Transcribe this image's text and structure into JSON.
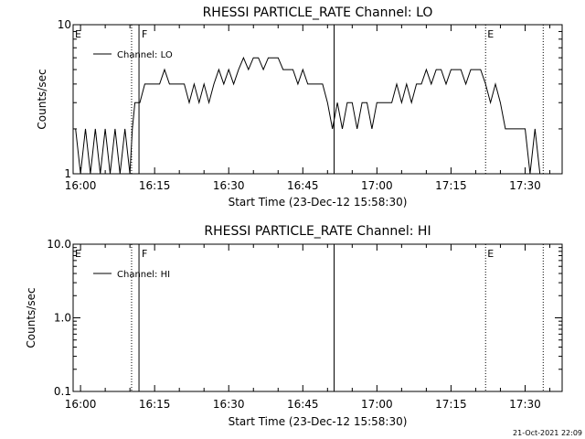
{
  "chart_data": [
    {
      "type": "line",
      "title": "RHESSI PARTICLE_RATE Channel: LO",
      "xlabel": "Start Time (23-Dec-12 15:58:30)",
      "ylabel": "Counts/sec",
      "yscale": "log",
      "xlim": [
        "15:58:30",
        "17:37:30"
      ],
      "ylim": [
        1,
        10
      ],
      "x_ticks": [
        "16:00",
        "16:15",
        "16:30",
        "16:45",
        "17:00",
        "17:15",
        "17:30"
      ],
      "y_ticks": [
        "1",
        "10"
      ],
      "legend": {
        "placement": "top-left",
        "entries": [
          "Channel: LO"
        ]
      },
      "region_labels": [
        {
          "text": "E",
          "at": "15:58:30"
        },
        {
          "text": "F",
          "at": "16:12:00"
        },
        {
          "text": "E",
          "at": "17:22:00"
        }
      ],
      "markers": [
        {
          "time": "16:10:20",
          "style": "dotted"
        },
        {
          "time": "16:11:50",
          "style": "solid"
        },
        {
          "time": "16:51:20",
          "style": "solid"
        },
        {
          "time": "17:22:00",
          "style": "dotted"
        },
        {
          "time": "17:33:40",
          "style": "dotted"
        }
      ],
      "series": [
        {
          "name": "Channel: LO",
          "x": [
            "15:59:00",
            "16:00:00",
            "16:01:00",
            "16:02:00",
            "16:03:00",
            "16:04:00",
            "16:05:00",
            "16:06:00",
            "16:07:00",
            "16:08:00",
            "16:09:00",
            "16:10:00",
            "16:10:30",
            "16:11:00",
            "16:12:00",
            "16:13:00",
            "16:14:00",
            "16:15:00",
            "16:16:00",
            "16:17:00",
            "16:18:00",
            "16:19:00",
            "16:20:00",
            "16:21:00",
            "16:22:00",
            "16:23:00",
            "16:24:00",
            "16:25:00",
            "16:26:00",
            "16:27:00",
            "16:28:00",
            "16:29:00",
            "16:30:00",
            "16:31:00",
            "16:32:00",
            "16:33:00",
            "16:34:00",
            "16:35:00",
            "16:36:00",
            "16:37:00",
            "16:38:00",
            "16:39:00",
            "16:40:00",
            "16:41:00",
            "16:42:00",
            "16:43:00",
            "16:44:00",
            "16:45:00",
            "16:46:00",
            "16:47:00",
            "16:48:00",
            "16:49:00",
            "16:50:00",
            "16:51:00",
            "16:52:00",
            "16:53:00",
            "16:54:00",
            "16:55:00",
            "16:56:00",
            "16:57:00",
            "16:58:00",
            "16:59:00",
            "17:00:00",
            "17:01:00",
            "17:02:00",
            "17:03:00",
            "17:04:00",
            "17:05:00",
            "17:06:00",
            "17:07:00",
            "17:08:00",
            "17:09:00",
            "17:10:00",
            "17:11:00",
            "17:12:00",
            "17:13:00",
            "17:14:00",
            "17:15:00",
            "17:16:00",
            "17:17:00",
            "17:18:00",
            "17:19:00",
            "17:20:00",
            "17:21:00",
            "17:22:00",
            "17:23:00",
            "17:24:00",
            "17:25:00",
            "17:26:00",
            "17:27:00",
            "17:28:00",
            "17:29:00",
            "17:30:00",
            "17:31:00",
            "17:32:00",
            "17:33:00",
            "17:34:00"
          ],
          "y": [
            2,
            1,
            2,
            1,
            2,
            1,
            2,
            1,
            2,
            1,
            2,
            1,
            2,
            3,
            3,
            4,
            4,
            4,
            4,
            5,
            4,
            4,
            4,
            4,
            3,
            4,
            3,
            4,
            3,
            4,
            5,
            4,
            5,
            4,
            5,
            6,
            5,
            6,
            6,
            5,
            6,
            6,
            6,
            5,
            5,
            5,
            4,
            5,
            4,
            4,
            4,
            4,
            3,
            2,
            3,
            2,
            3,
            3,
            2,
            3,
            3,
            2,
            3,
            3,
            3,
            3,
            4,
            3,
            4,
            3,
            4,
            4,
            5,
            4,
            5,
            5,
            4,
            5,
            5,
            5,
            4,
            5,
            5,
            5,
            4,
            3,
            4,
            3,
            2,
            2,
            2,
            2,
            2,
            1,
            2,
            1,
            1
          ]
        }
      ]
    },
    {
      "type": "line",
      "title": "RHESSI PARTICLE_RATE Channel: HI",
      "xlabel": "Start Time (23-Dec-12 15:58:30)",
      "ylabel": "Counts/sec",
      "yscale": "log",
      "xlim": [
        "15:58:30",
        "17:37:30"
      ],
      "ylim": [
        0.1,
        10
      ],
      "x_ticks": [
        "16:00",
        "16:15",
        "16:30",
        "16:45",
        "17:00",
        "17:15",
        "17:30"
      ],
      "y_ticks": [
        "0.1",
        "1.0",
        "10.0"
      ],
      "legend": {
        "placement": "top-left",
        "entries": [
          "Channel: HI"
        ]
      },
      "region_labels": [
        {
          "text": "E",
          "at": "15:58:30"
        },
        {
          "text": "F",
          "at": "16:12:00"
        },
        {
          "text": "E",
          "at": "17:22:00"
        }
      ],
      "markers": [
        {
          "time": "16:10:20",
          "style": "dotted"
        },
        {
          "time": "16:11:50",
          "style": "solid"
        },
        {
          "time": "16:51:20",
          "style": "solid"
        },
        {
          "time": "17:22:00",
          "style": "dotted"
        },
        {
          "time": "17:33:40",
          "style": "dotted"
        }
      ],
      "series": [
        {
          "name": "Channel: HI",
          "x": [],
          "y": []
        }
      ]
    }
  ],
  "footer": {
    "timestamp": "21-Oct-2021 22:09"
  }
}
